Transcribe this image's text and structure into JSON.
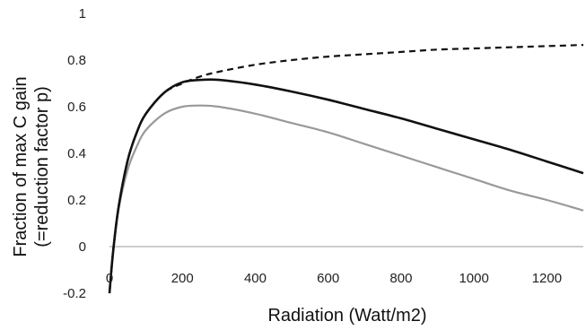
{
  "chart_data": {
    "type": "line",
    "title": "",
    "xlabel": "Radiation (Watt/m2)",
    "ylabel_line1": "Fraction of max C gain",
    "ylabel_line2": "(=reduction factor p)",
    "xlim": [
      0,
      1300
    ],
    "ylim": [
      -0.2,
      1
    ],
    "xticks": [
      "0",
      "200",
      "400",
      "600",
      "800",
      "1000",
      "1200"
    ],
    "yticks": [
      "-0.2",
      "0",
      "0.2",
      "0.4",
      "0.6",
      "0.8",
      "1"
    ],
    "grid": false,
    "colors": {
      "dashed": "#111111",
      "black": "#111111",
      "gray": "#999999",
      "zero_line": "#bbbbbb"
    },
    "series": [
      {
        "style": "dashed",
        "x": [
          0,
          10,
          25,
          50,
          75,
          100,
          150,
          200,
          250,
          300,
          400,
          500,
          600,
          700,
          800,
          900,
          1000,
          1100,
          1200,
          1300
        ],
        "y": [
          -0.2,
          -0.02,
          0.17,
          0.37,
          0.49,
          0.57,
          0.66,
          0.7,
          0.73,
          0.75,
          0.78,
          0.8,
          0.815,
          0.825,
          0.835,
          0.845,
          0.85,
          0.855,
          0.86,
          0.865
        ]
      },
      {
        "style": "solid-black",
        "x": [
          0,
          10,
          25,
          50,
          75,
          100,
          150,
          200,
          250,
          300,
          400,
          500,
          600,
          700,
          800,
          900,
          1000,
          1100,
          1200,
          1300
        ],
        "y": [
          -0.2,
          -0.02,
          0.17,
          0.37,
          0.49,
          0.57,
          0.66,
          0.705,
          0.715,
          0.715,
          0.695,
          0.665,
          0.63,
          0.59,
          0.55,
          0.505,
          0.46,
          0.415,
          0.365,
          0.315
        ]
      },
      {
        "style": "solid-gray",
        "x": [
          0,
          10,
          25,
          50,
          75,
          100,
          150,
          200,
          250,
          300,
          400,
          500,
          600,
          700,
          800,
          900,
          1000,
          1100,
          1200,
          1300
        ],
        "y": [
          -0.2,
          -0.03,
          0.16,
          0.33,
          0.43,
          0.5,
          0.57,
          0.6,
          0.605,
          0.6,
          0.57,
          0.53,
          0.49,
          0.44,
          0.39,
          0.34,
          0.29,
          0.24,
          0.2,
          0.155
        ]
      }
    ]
  }
}
